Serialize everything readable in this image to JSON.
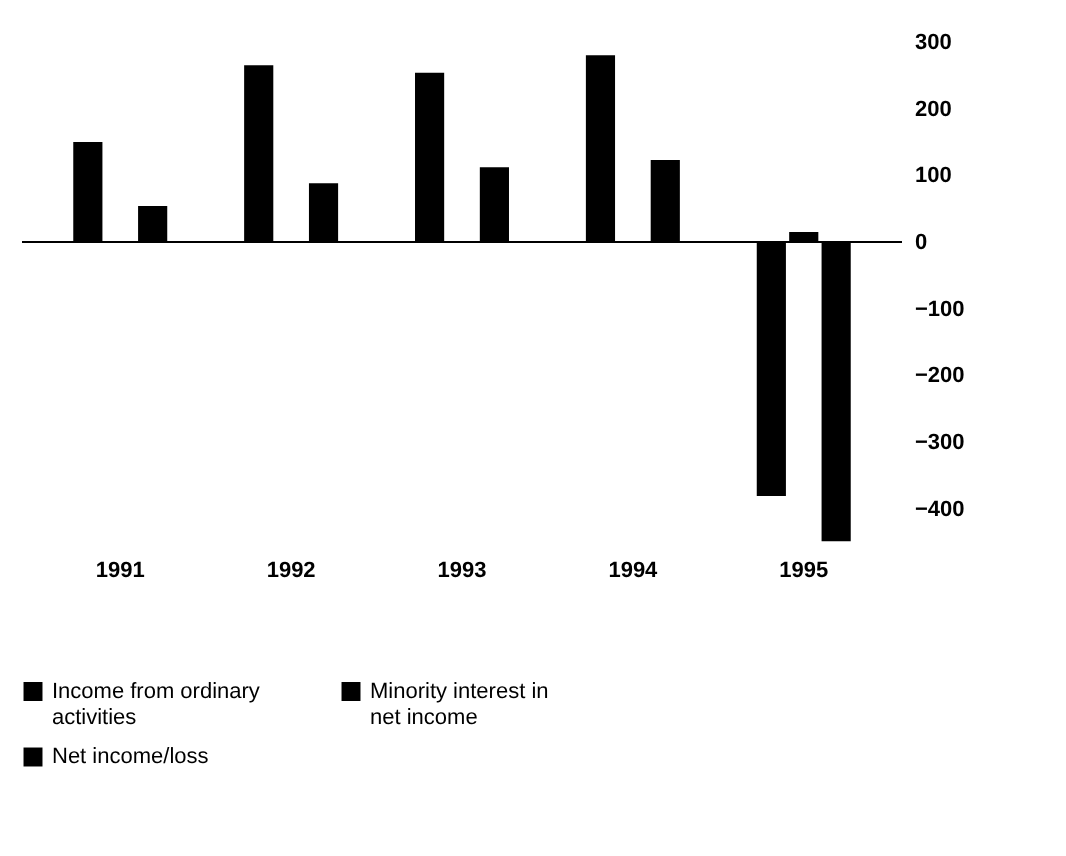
{
  "chart_data": {
    "type": "bar",
    "categories": [
      "1991",
      "1992",
      "1993",
      "1994",
      "1995"
    ],
    "series": [
      {
        "name": "Income from ordinary activities",
        "color": "#000000",
        "values": [
          150,
          265,
          254,
          280,
          -381
        ]
      },
      {
        "name": "Minority interest in net income",
        "color": "#000000",
        "values": [
          null,
          null,
          null,
          null,
          15
        ]
      },
      {
        "name": "Net income/loss",
        "color": "#000000",
        "values": [
          54,
          88,
          112,
          123,
          -449
        ]
      }
    ],
    "ylim": [
      -450,
      300
    ],
    "yticks": [
      300,
      200,
      100,
      0,
      -100,
      -200,
      -300,
      -400
    ],
    "ref_lines": [
      {
        "axis": "y",
        "value": 0,
        "color": "#000000"
      }
    ],
    "grid": false,
    "legend": "bottom"
  }
}
